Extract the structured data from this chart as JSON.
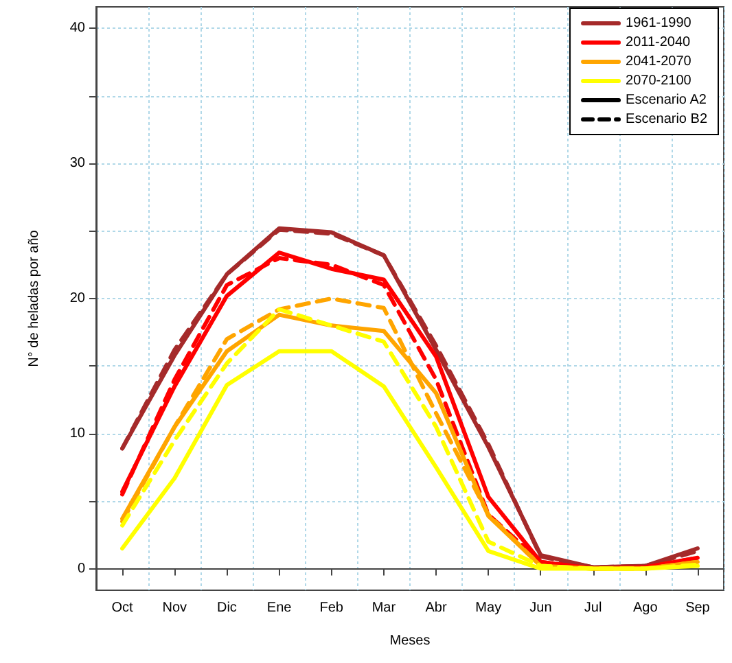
{
  "chart_data": {
    "type": "line",
    "xlabel": "Meses",
    "ylabel": "N° de heladas por año",
    "categories": [
      "Oct",
      "Nov",
      "Dic",
      "Ene",
      "Feb",
      "Mar",
      "Abr",
      "May",
      "Jun",
      "Jul",
      "Ago",
      "Sep"
    ],
    "series": [
      {
        "name": "1961-1990",
        "color": "#a52a2a",
        "line_style": "solid",
        "values": [
          8.9,
          15.8,
          21.8,
          25.2,
          24.9,
          23.2,
          16.2,
          9.0,
          1.0,
          0.1,
          0.2,
          1.5
        ]
      },
      {
        "color": "#a52a2a",
        "line_style": "dashed",
        "values": [
          8.9,
          16.2,
          21.8,
          25.1,
          24.8,
          23.2,
          16.5,
          9.2,
          0.9,
          0.1,
          0.2,
          1.3
        ]
      },
      {
        "name": "2011-2040",
        "color": "#ff0000",
        "line_style": "solid",
        "values": [
          5.7,
          13.5,
          20.2,
          23.4,
          22.2,
          21.4,
          15.7,
          5.3,
          0.5,
          0,
          0.1,
          0.8
        ]
      },
      {
        "color": "#ff0000",
        "line_style": "dashed",
        "values": [
          5.5,
          14.0,
          21.0,
          23.0,
          22.5,
          21.0,
          14.0,
          4.0,
          0.5,
          0,
          0.1,
          0.8
        ]
      },
      {
        "name": "2041-2070",
        "color": "#ffa500",
        "line_style": "solid",
        "values": [
          3.7,
          10.5,
          16.1,
          18.8,
          18.0,
          17.6,
          13.0,
          3.9,
          0.2,
          0,
          0,
          0.5
        ]
      },
      {
        "color": "#ffa500",
        "line_style": "dashed",
        "values": [
          3.5,
          10.5,
          17.0,
          19.2,
          20.0,
          19.3,
          11.5,
          4.0,
          0.2,
          0,
          0,
          0.5
        ]
      },
      {
        "name": "2070-2100",
        "color": "#ffff00",
        "line_style": "solid",
        "values": [
          1.5,
          6.7,
          13.6,
          16.1,
          16.1,
          13.5,
          7.5,
          1.3,
          0,
          0,
          0,
          0.2
        ]
      },
      {
        "color": "#ffff00",
        "line_style": "dashed",
        "values": [
          3.2,
          9.5,
          15.2,
          19.2,
          18.0,
          16.8,
          10.5,
          2.0,
          0.2,
          0,
          0,
          0.3
        ]
      },
      {
        "name": "Escenario A2",
        "color": "#000000",
        "line_style": "solid",
        "values": [
          null,
          null,
          null,
          null,
          null,
          null,
          null,
          null,
          null,
          null,
          null,
          null
        ]
      },
      {
        "name": "Escenario B2",
        "color": "#000000",
        "line_style": "dashed",
        "values": [
          null,
          null,
          null,
          null,
          null,
          null,
          null,
          null,
          null,
          null,
          null,
          null
        ]
      }
    ],
    "ylim": [
      -1.6,
      41.6
    ],
    "yticks": [
      0,
      {
        "value": 5,
        "label": null
      },
      10,
      {
        "value": 15,
        "label": null
      },
      20,
      {
        "value": 25,
        "label": null
      },
      30,
      {
        "value": 35,
        "label": null
      },
      40
    ],
    "grid": true,
    "legend": "top right",
    "marker": "none"
  }
}
